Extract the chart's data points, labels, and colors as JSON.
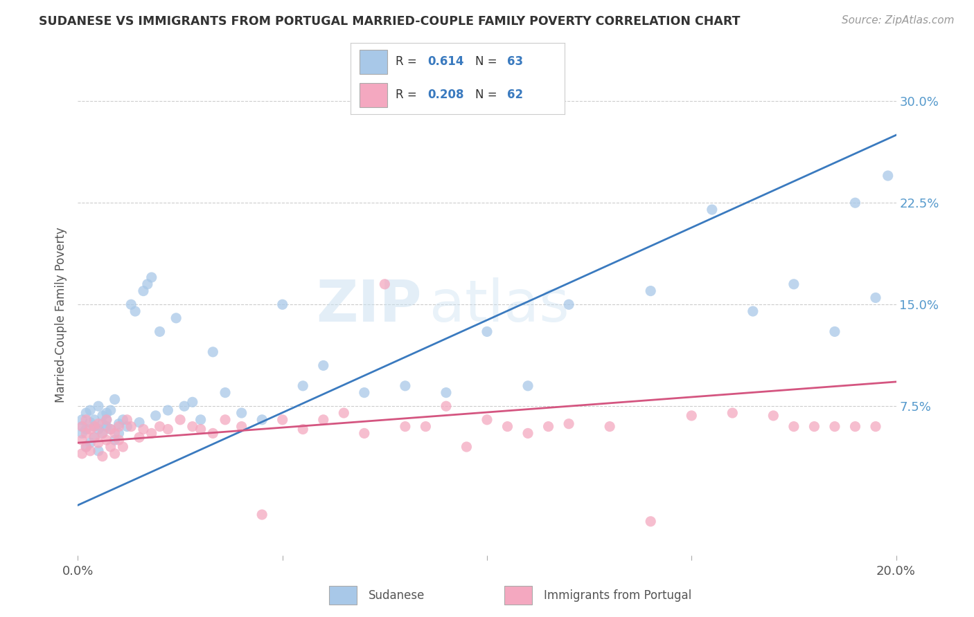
{
  "title": "SUDANESE VS IMMIGRANTS FROM PORTUGAL MARRIED-COUPLE FAMILY POVERTY CORRELATION CHART",
  "source": "Source: ZipAtlas.com",
  "ylabel": "Married-Couple Family Poverty",
  "xlim": [
    0.0,
    0.2
  ],
  "ylim": [
    -0.035,
    0.32
  ],
  "yticks_right": [
    0.075,
    0.15,
    0.225,
    0.3
  ],
  "ytick_labels_right": [
    "7.5%",
    "15.0%",
    "22.5%",
    "30.0%"
  ],
  "blue_color": "#a8c8e8",
  "blue_line_color": "#3a7abf",
  "pink_color": "#f4a8c0",
  "pink_line_color": "#d45580",
  "legend_R1": "0.614",
  "legend_N1": "63",
  "legend_R2": "0.208",
  "legend_N2": "62",
  "legend_label1": "Sudanese",
  "legend_label2": "Immigrants from Portugal",
  "watermark": "ZIPatlas",
  "blue_line_x": [
    0.0,
    0.2
  ],
  "blue_line_y": [
    0.002,
    0.275
  ],
  "pink_line_x": [
    0.0,
    0.2
  ],
  "pink_line_y": [
    0.048,
    0.093
  ],
  "blue_scatter_x": [
    0.001,
    0.001,
    0.001,
    0.002,
    0.002,
    0.002,
    0.003,
    0.003,
    0.003,
    0.004,
    0.004,
    0.004,
    0.005,
    0.005,
    0.005,
    0.006,
    0.006,
    0.006,
    0.007,
    0.007,
    0.007,
    0.008,
    0.008,
    0.009,
    0.009,
    0.01,
    0.01,
    0.011,
    0.012,
    0.013,
    0.014,
    0.015,
    0.016,
    0.017,
    0.018,
    0.019,
    0.02,
    0.022,
    0.024,
    0.026,
    0.028,
    0.03,
    0.033,
    0.036,
    0.04,
    0.045,
    0.05,
    0.055,
    0.06,
    0.07,
    0.08,
    0.09,
    0.1,
    0.11,
    0.12,
    0.14,
    0.155,
    0.165,
    0.175,
    0.185,
    0.19,
    0.195,
    0.198
  ],
  "blue_scatter_y": [
    0.055,
    0.06,
    0.065,
    0.058,
    0.07,
    0.045,
    0.063,
    0.072,
    0.048,
    0.06,
    0.065,
    0.052,
    0.058,
    0.075,
    0.042,
    0.055,
    0.068,
    0.062,
    0.06,
    0.065,
    0.07,
    0.058,
    0.072,
    0.05,
    0.08,
    0.062,
    0.055,
    0.065,
    0.06,
    0.15,
    0.145,
    0.063,
    0.16,
    0.165,
    0.17,
    0.068,
    0.13,
    0.072,
    0.14,
    0.075,
    0.078,
    0.065,
    0.115,
    0.085,
    0.07,
    0.065,
    0.15,
    0.09,
    0.105,
    0.085,
    0.09,
    0.085,
    0.13,
    0.09,
    0.15,
    0.16,
    0.22,
    0.145,
    0.165,
    0.13,
    0.225,
    0.155,
    0.245
  ],
  "pink_scatter_x": [
    0.001,
    0.001,
    0.001,
    0.002,
    0.002,
    0.002,
    0.003,
    0.003,
    0.004,
    0.004,
    0.005,
    0.005,
    0.006,
    0.006,
    0.007,
    0.007,
    0.008,
    0.008,
    0.009,
    0.009,
    0.01,
    0.01,
    0.011,
    0.012,
    0.013,
    0.015,
    0.016,
    0.018,
    0.02,
    0.022,
    0.025,
    0.028,
    0.03,
    0.033,
    0.036,
    0.04,
    0.045,
    0.05,
    0.055,
    0.06,
    0.065,
    0.07,
    0.075,
    0.08,
    0.085,
    0.09,
    0.095,
    0.1,
    0.105,
    0.11,
    0.115,
    0.12,
    0.13,
    0.14,
    0.15,
    0.16,
    0.17,
    0.175,
    0.18,
    0.185,
    0.19,
    0.195
  ],
  "pink_scatter_y": [
    0.05,
    0.06,
    0.04,
    0.055,
    0.045,
    0.065,
    0.058,
    0.042,
    0.052,
    0.06,
    0.048,
    0.062,
    0.038,
    0.055,
    0.05,
    0.065,
    0.045,
    0.058,
    0.04,
    0.055,
    0.05,
    0.06,
    0.045,
    0.065,
    0.06,
    0.052,
    0.058,
    0.055,
    0.06,
    0.058,
    0.065,
    0.06,
    0.058,
    0.055,
    0.065,
    0.06,
    -0.005,
    0.065,
    0.058,
    0.065,
    0.07,
    0.055,
    0.165,
    0.06,
    0.06,
    0.075,
    0.045,
    0.065,
    0.06,
    0.055,
    0.06,
    0.062,
    0.06,
    -0.01,
    0.068,
    0.07,
    0.068,
    0.06,
    0.06,
    0.06,
    0.06,
    0.06
  ]
}
